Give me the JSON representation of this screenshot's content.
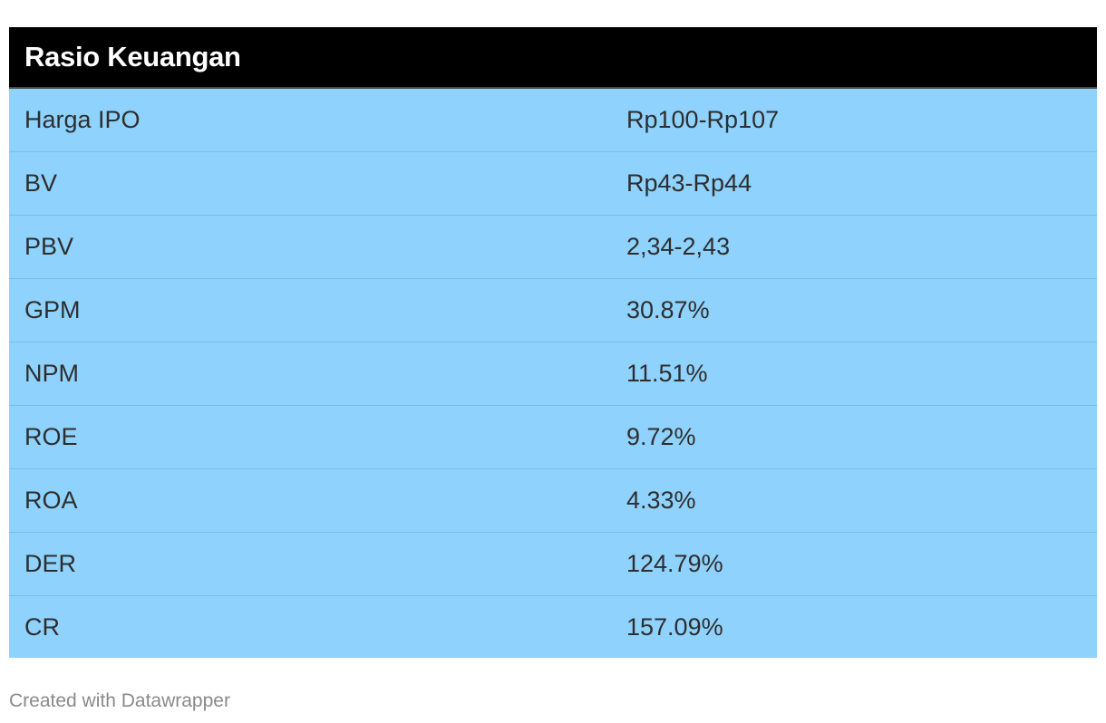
{
  "chart_data": {
    "type": "table",
    "title": "Rasio Keuangan",
    "rows": [
      {
        "label": "Harga IPO",
        "value": "Rp100-Rp107"
      },
      {
        "label": "BV",
        "value": "Rp43-Rp44"
      },
      {
        "label": "PBV",
        "value": "2,34-2,43"
      },
      {
        "label": "GPM",
        "value": "30.87%"
      },
      {
        "label": "NPM",
        "value": "11.51%"
      },
      {
        "label": "ROE",
        "value": "9.72%"
      },
      {
        "label": "ROA",
        "value": "4.33%"
      },
      {
        "label": "DER",
        "value": "124.79%"
      },
      {
        "label": "CR",
        "value": "157.09%"
      }
    ]
  },
  "footer": {
    "credit": "Created with Datawrapper"
  },
  "colors": {
    "header_bg": "#000000",
    "header_text": "#ffffff",
    "row_bg": "#8fd2fd",
    "row_text": "#2e2e2e",
    "footer_text": "#8a8a8a"
  }
}
